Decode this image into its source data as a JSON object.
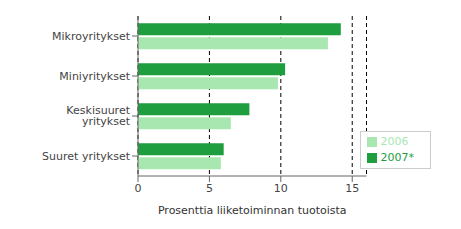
{
  "chart_data": {
    "type": "bar",
    "orientation": "horizontal",
    "xlabel": "Prosenttia liiketoiminnan tuotoista",
    "categories": [
      "Mikroyritykset",
      "Miniyritykset",
      "Keskisuuret yritykset",
      "Suuret yritykset"
    ],
    "series": [
      {
        "name": "2007*",
        "color": "#1e9e3e",
        "values": [
          14.2,
          10.3,
          7.8,
          6.0
        ]
      },
      {
        "name": "2006",
        "color": "#a8e8b0",
        "values": [
          13.3,
          9.8,
          6.5,
          5.8
        ]
      }
    ],
    "xlim": [
      0,
      16
    ],
    "xticks": [
      0,
      5,
      10,
      15
    ],
    "grid": true,
    "legend": "lower right"
  }
}
